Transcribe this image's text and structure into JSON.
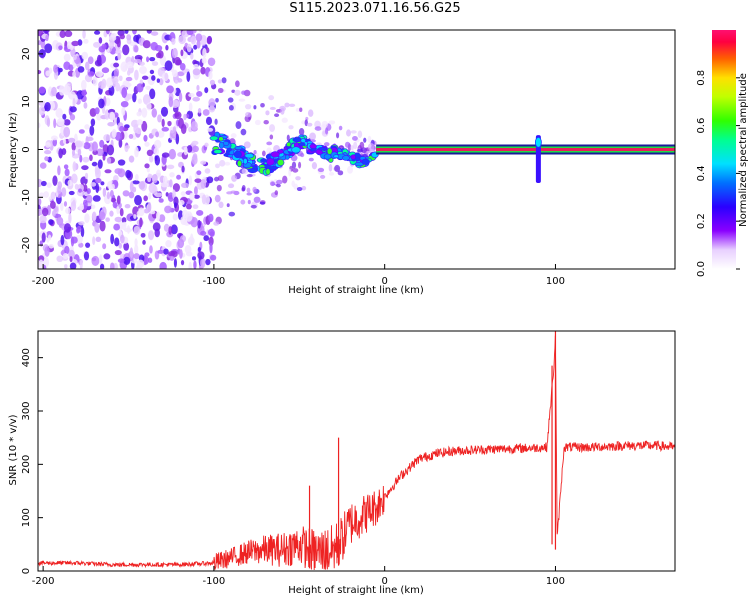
{
  "title": "S115.2023.071.16.56.G25",
  "colors": {
    "snr_line": "#ee2222",
    "band_core": "#e02060",
    "band_outer": "#22dd22"
  },
  "chart_data": [
    {
      "type": "heatmap",
      "xlabel": "Height of straight line (km)",
      "ylabel": "Frequency (Hz)",
      "xlim": [
        -203,
        170
      ],
      "ylim": [
        -25,
        25
      ],
      "x_ticks": [
        "-200",
        "-100",
        "0",
        "100"
      ],
      "y_ticks": [
        "20",
        "10",
        "0",
        "-10",
        "-20"
      ],
      "x_tick_values": [
        -200,
        -100,
        0,
        100
      ],
      "y_tick_values": [
        20,
        10,
        0,
        -10,
        -20
      ],
      "colorbar": {
        "label": "Normalized spectral amplitude",
        "ticks": [
          "0.0",
          "0.2",
          "0.4",
          "0.6",
          "0.8"
        ],
        "tick_values": [
          0.0,
          0.2,
          0.4,
          0.6,
          0.8
        ],
        "range": [
          0,
          1
        ]
      },
      "regions": [
        {
          "description": "scattered noise",
          "x_range": [
            -203,
            -100
          ],
          "y_range": [
            -25,
            25
          ],
          "amplitude": 0.15
        },
        {
          "description": "disturbed tone",
          "x_range": [
            -100,
            -5
          ],
          "amplitude": 0.5
        },
        {
          "description": "steady tone",
          "x_range": [
            -5,
            170
          ],
          "frequency": 0.0,
          "amplitude": 1.0
        }
      ],
      "spike": {
        "x": 90,
        "frequency_range": [
          -7,
          3
        ]
      }
    },
    {
      "type": "line",
      "xlabel": "Height of straight line (km)",
      "ylabel": "SNR (10 * v/v)",
      "xlim": [
        -203,
        170
      ],
      "ylim": [
        0,
        450
      ],
      "x_ticks": [
        "-200",
        "-100",
        "0",
        "100"
      ],
      "y_ticks": [
        "0",
        "100",
        "200",
        "300",
        "400"
      ],
      "x_tick_values": [
        -200,
        -100,
        0,
        100
      ],
      "y_tick_values": [
        0,
        100,
        200,
        300,
        400
      ],
      "series": [
        {
          "color": "#ee2222",
          "x": [
            -203,
            -180,
            -160,
            -140,
            -120,
            -100,
            -90,
            -80,
            -70,
            -60,
            -50,
            -40,
            -30,
            -25,
            -20,
            -15,
            -10,
            -5,
            0,
            10,
            20,
            30,
            40,
            60,
            80,
            95,
            99,
            100,
            101,
            105,
            120,
            140,
            160,
            170
          ],
          "values": [
            15,
            15,
            12,
            12,
            12,
            15,
            25,
            35,
            40,
            40,
            50,
            35,
            40,
            60,
            90,
            100,
            110,
            120,
            140,
            180,
            210,
            220,
            225,
            228,
            230,
            232,
            380,
            440,
            60,
            232,
            232,
            235,
            235,
            232
          ],
          "spikes": [
            {
              "x": -44,
              "values": [
                5,
                160
              ]
            },
            {
              "x": -27,
              "values": [
                10,
                250
              ]
            },
            {
              "x": 98,
              "values": [
                50,
                385
              ]
            },
            {
              "x": 100,
              "values": [
                40,
                450
              ]
            }
          ]
        }
      ]
    }
  ]
}
